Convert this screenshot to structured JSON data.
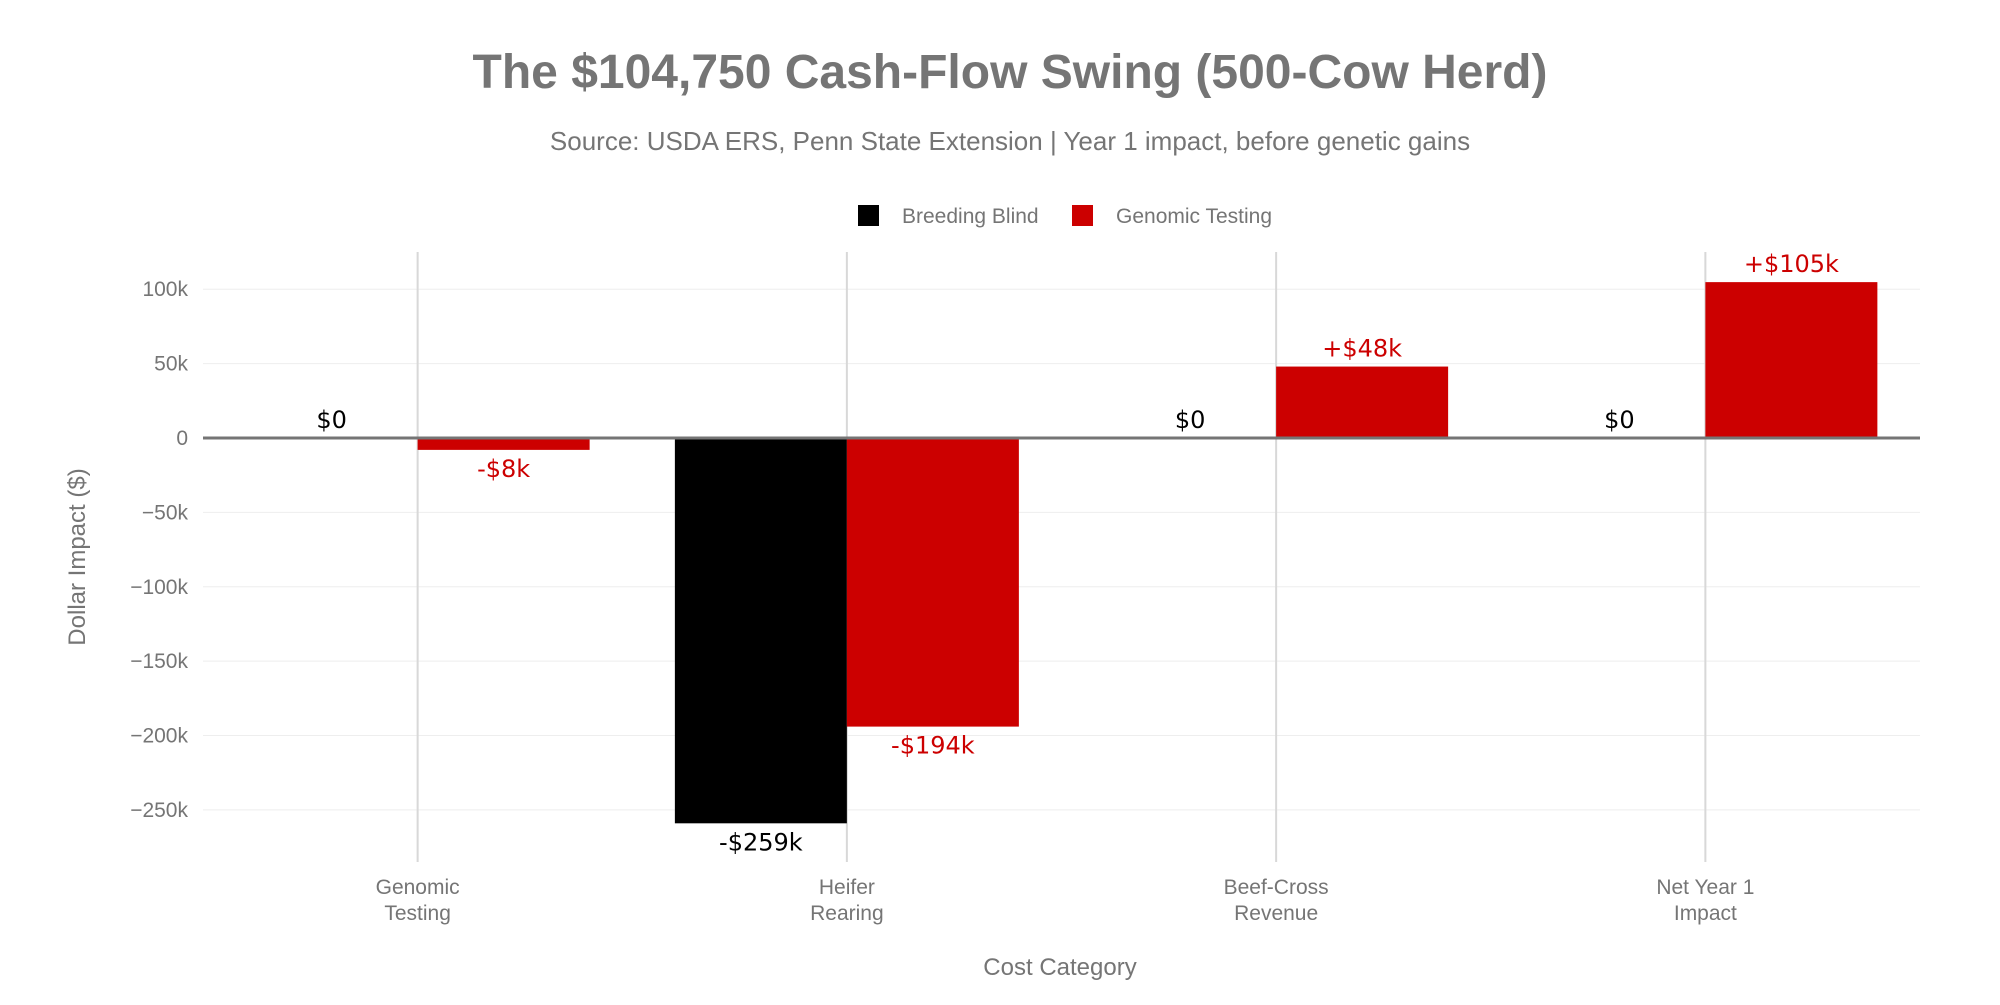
{
  "chart_data": {
    "type": "bar",
    "title": "The $104,750 Cash-Flow Swing (500-Cow Herd)",
    "subtitle": "Source: USDA ERS, Penn State Extension | Year 1 impact, before genetic gains",
    "xlabel": "Cost Category",
    "ylabel": "Dollar Impact ($)",
    "categories": [
      [
        "Genomic",
        "Testing"
      ],
      [
        "Heifer",
        "Rearing"
      ],
      [
        "Beef-Cross",
        "Revenue"
      ],
      [
        "Net Year 1",
        "Impact"
      ]
    ],
    "series": [
      {
        "name": "Breeding Blind",
        "color": "#000000",
        "values": [
          0,
          -259000,
          0,
          0
        ],
        "labels": [
          "$0",
          "-$259k",
          "$0",
          "$0"
        ]
      },
      {
        "name": "Genomic Testing",
        "color": "#cc0000",
        "values": [
          -8000,
          -194000,
          48000,
          104750
        ],
        "labels": [
          "-$8k",
          "-$194k",
          "+$48k",
          "+$105k"
        ]
      }
    ],
    "ylim": [
      -285000,
      125000
    ],
    "yticks": [
      100000,
      50000,
      0,
      -50000,
      -100000,
      -150000,
      -200000,
      -250000
    ],
    "ytick_labels": [
      "100k",
      "50k",
      "0",
      "−50k",
      "−100k",
      "−150k",
      "−200k",
      "−250k"
    ],
    "grid": true,
    "legend_position": "top-center"
  }
}
